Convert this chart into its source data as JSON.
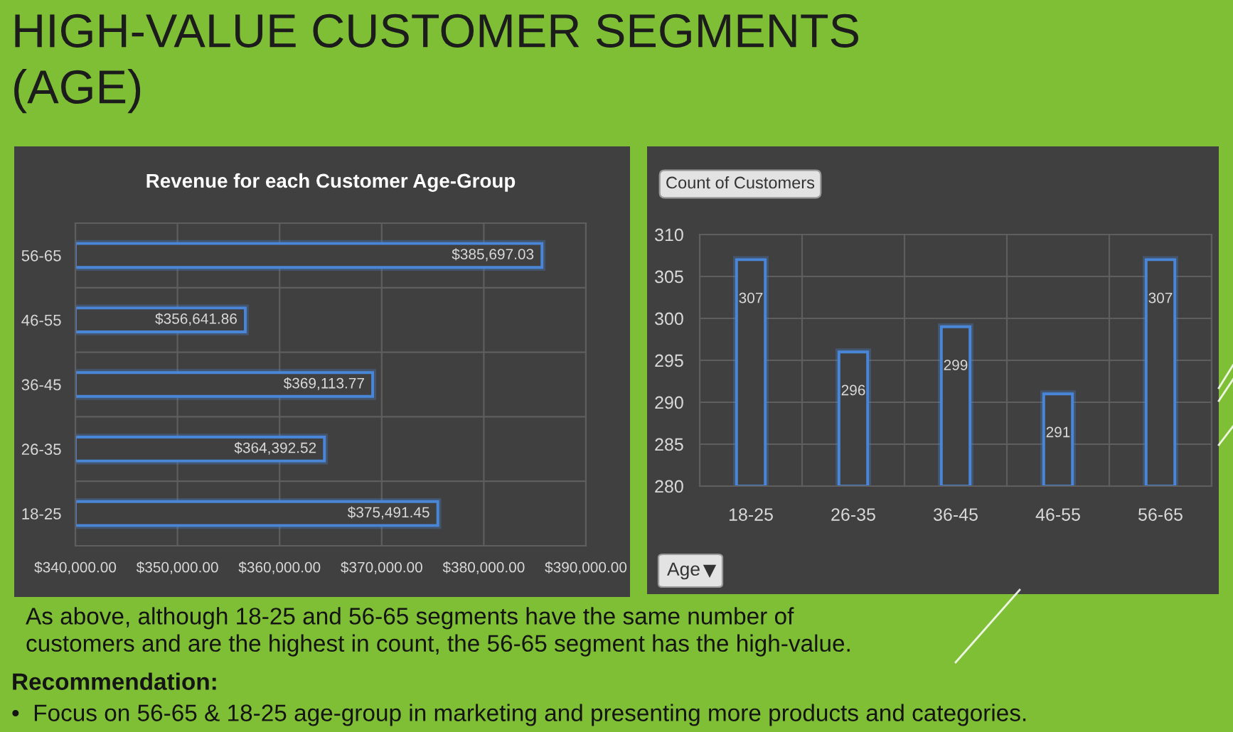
{
  "chart_data": [
    {
      "type": "other",
      "title": "HIGH-VALUE CUSTOMER SEGMENTS\n(AGE)",
      "annotations": [
        "As above, although 18-25 and 56-65 segments have the same number of\ncustomers and are the highest in count, the 56-65 segment has the high-value.",
        "Recommendation:",
        "•  Focus on 56-65 & 18-25 age-group in marketing and presenting more products and categories."
      ]
    },
    {
      "type": "bar",
      "orientation": "horizontal",
      "title": "Revenue for each Customer Age-Group",
      "categories": [
        "56-65",
        "46-55",
        "36-45",
        "26-35",
        "18-25"
      ],
      "values": [
        385697.03,
        356641.86,
        369113.77,
        364392.52,
        375491.45
      ],
      "value_labels": [
        "$385,697.03",
        "$356,641.86",
        "$369,113.77",
        "$364,392.52",
        "$375,491.45"
      ],
      "color": "#4a86d8",
      "xlim": [
        340000,
        390000
      ],
      "xticks": [
        {
          "value": 340000,
          "label": "$340,000.00"
        },
        {
          "value": 350000,
          "label": "$350,000.00"
        },
        {
          "value": 360000,
          "label": "$360,000.00"
        },
        {
          "value": 370000,
          "label": "$370,000.00"
        },
        {
          "value": 380000,
          "label": "$380,000.00"
        },
        {
          "value": 390000,
          "label": "$390,000.00"
        }
      ],
      "grid": true
    },
    {
      "type": "bar",
      "title": "Count of Customers",
      "xlabel": "Age",
      "categories": [
        "18-25",
        "26-35",
        "36-45",
        "46-55",
        "56-65"
      ],
      "values": [
        307,
        296,
        299,
        291,
        307
      ],
      "color": "#4a86d8",
      "ylim": [
        280,
        310
      ],
      "yticks": [
        280,
        285,
        290,
        295,
        300,
        305,
        310
      ],
      "data_labels": true,
      "grid": true
    }
  ]
}
